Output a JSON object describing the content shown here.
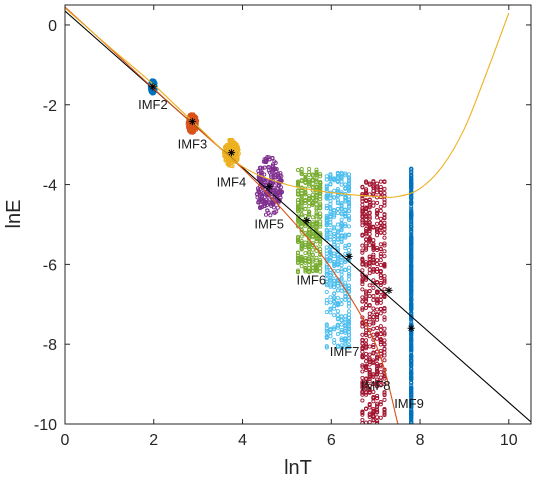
{
  "chart_data": {
    "type": "scatter",
    "xlabel": "lnT",
    "ylabel": "lnE",
    "xlim": [
      0,
      10.5
    ],
    "ylim": [
      -10,
      0.5
    ],
    "xticks": [
      "0",
      "2",
      "4",
      "6",
      "8",
      "10"
    ],
    "yticks": [
      "0",
      "-2",
      "-4",
      "-6",
      "-8",
      "-10"
    ],
    "grid": false,
    "series": [
      {
        "name": "IMF2",
        "color": "#0072BD",
        "x_center": 1.98,
        "y_range": [
          -1.72,
          -1.38
        ],
        "x_spread": 0.07
      },
      {
        "name": "IMF3",
        "color": "#D95319",
        "x_center": 2.87,
        "y_range": [
          -2.72,
          -2.22
        ],
        "x_spread": 0.11
      },
      {
        "name": "IMF4",
        "color": "#EDB120",
        "x_center": 3.75,
        "y_range": [
          -3.55,
          -2.85
        ],
        "x_spread": 0.17
      },
      {
        "name": "IMF5",
        "color": "#7E2F8E",
        "x_center": 4.6,
        "y_range": [
          -4.8,
          -3.3
        ],
        "x_spread": 0.3
      },
      {
        "name": "IMF6",
        "color": "#77AC30",
        "x_center": 5.5,
        "y_range": [
          -6.2,
          -3.6
        ],
        "x_spread": 0.5
      },
      {
        "name": "IMF7",
        "color": "#4DBEEE",
        "x_center": 6.15,
        "y_range": [
          -8.1,
          -3.7
        ],
        "x_spread": 0.5
      },
      {
        "name": "IMF8",
        "color": "#A2142F",
        "x_center": 6.95,
        "y_range": [
          -10,
          -3.9
        ],
        "x_spread": 0.5
      },
      {
        "name": "IMF9",
        "color": "#0072BD",
        "x_center": 7.8,
        "y_range": [
          -10,
          -3.6
        ],
        "x_spread": 0.02
      }
    ],
    "mean_points": {
      "color": "#000000",
      "x": [
        1.98,
        2.87,
        3.75,
        4.6,
        5.45,
        6.4,
        7.3,
        7.8
      ],
      "y": [
        -1.55,
        -2.42,
        -3.2,
        -4.05,
        -4.9,
        -5.8,
        -6.65,
        -7.6
      ]
    },
    "label_positions": [
      {
        "text": "IMF2",
        "x": 1.98,
        "y": -2.1
      },
      {
        "text": "IMF3",
        "x": 2.87,
        "y": -3.1
      },
      {
        "text": "IMF4",
        "x": 3.75,
        "y": -4.05
      },
      {
        "text": "IMF5",
        "x": 4.6,
        "y": -5.1
      },
      {
        "text": "IMF6",
        "x": 5.55,
        "y": -6.5
      },
      {
        "text": "IMF7",
        "x": 6.3,
        "y": -8.3
      },
      {
        "text": "IMF8",
        "x": 7.0,
        "y": -9.15
      },
      {
        "text": "IMF9",
        "x": 7.75,
        "y": -9.6
      }
    ],
    "lines": [
      {
        "color": "#000000",
        "x": [
          0,
          10.5
        ],
        "y": [
          0.35,
          -9.95
        ]
      },
      {
        "color": "#D95319",
        "x": [
          0,
          1,
          2,
          3,
          4,
          5,
          6,
          7,
          7.5
        ],
        "y": [
          0.45,
          -0.57,
          -1.6,
          -2.6,
          -3.6,
          -4.75,
          -6.1,
          -8.0,
          -10.0
        ]
      },
      {
        "color": "#EDB120",
        "x": [
          0,
          1,
          2,
          3,
          4,
          5,
          6,
          7,
          7.5,
          8,
          8.5,
          9,
          9.5,
          10
        ],
        "y": [
          0.42,
          -0.55,
          -1.5,
          -2.55,
          -3.55,
          -4.0,
          -4.2,
          -4.3,
          -4.3,
          -4.1,
          -3.55,
          -2.6,
          -1.2,
          0.3
        ]
      }
    ]
  }
}
